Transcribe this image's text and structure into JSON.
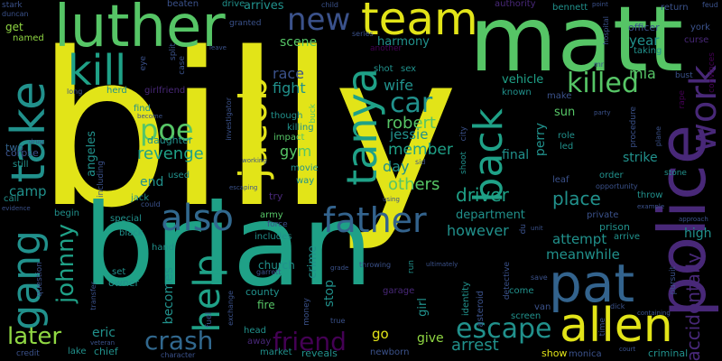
{
  "colors": {
    "background": "#000000",
    "yellow": "#e2e418",
    "green": "#56c566",
    "lightgreen": "#90d743",
    "teal": "#1fa187",
    "tealdark": "#21918c",
    "blue": "#33638d",
    "bluelight": "#3b528b",
    "purple": "#482878",
    "purpledark": "#440154",
    "navy": "#31688e"
  },
  "words": {
    "billy": "billy",
    "brian": "brian",
    "matt": "matt",
    "luther": "luther",
    "police": "police",
    "team": "team",
    "kill": "kill",
    "take": "take",
    "jacob": "jacob",
    "tanya": "tanya",
    "pat": "pat",
    "allen": "allen",
    "also": "also",
    "father": "father",
    "gang": "gang",
    "back": "back",
    "work": "work",
    "killed": "killed",
    "new": "new",
    "poe": "poe",
    "help": "help",
    "car": "car",
    "escape": "escape",
    "crash": "crash",
    "friend": "friend",
    "later": "later",
    "johnny": "johnny",
    "robert": "robert",
    "revenge": "revenge",
    "accidentally": "accidentally",
    "driver": "driver",
    "meanwhile": "meanwhile",
    "attempt": "attempt",
    "place": "place",
    "however": "however",
    "department": "department",
    "others": "others",
    "member": "member",
    "jessie": "jessie",
    "day": "day",
    "gym": "gym",
    "wife": "wife",
    "race": "race",
    "fight": "fight",
    "scene": "scene",
    "harmony": "harmony",
    "vehicle": "vehicle",
    "year": "year",
    "mia": "mia",
    "strike": "strike",
    "high": "high",
    "arrest": "arrest",
    "give": "give",
    "go": "go",
    "eric": "eric",
    "camp": "camp",
    "angeles": "angeles",
    "end": "end",
    "daughter": "daughter",
    "becomes": "becomes",
    "sun": "sun",
    "perry": "perry",
    "stop": "stop",
    "crime": "crime",
    "girl": "girl",
    "county": "county",
    "fire": "fire",
    "church": "church",
    "final": "final",
    "arrives": "arrives",
    "get": "get",
    "two": "two",
    "stark": "stark",
    "duncan": "duncan",
    "named": "named",
    "beaten": "beaten",
    "drive": "drive",
    "granted": "granted",
    "series": "series",
    "another": "another",
    "authority": "authority",
    "bennett": "bennett",
    "officer": "officer",
    "return": "return",
    "york": "york",
    "curse": "curse",
    "feud": "feud",
    "hospital": "hospital",
    "mr": "mr",
    "taking": "taking",
    "bust": "bust",
    "convinces": "convinces",
    "child": "child",
    "known": "known",
    "make": "make",
    "led": "led",
    "role": "role",
    "procedure": "procedure",
    "rape": "rape",
    "leaf": "leaf",
    "order": "order",
    "opportunity": "opportunity",
    "prison": "prison",
    "stone": "stone",
    "arrive": "arrive",
    "throw": "throw",
    "private": "private",
    "example": "example",
    "approach": "approach",
    "come": "come",
    "van": "van",
    "screen": "screen",
    "detective": "detective",
    "asteroid": "asteroid",
    "identity": "identity",
    "shoot": "shoot",
    "city": "city",
    "show": "show",
    "monica": "monica",
    "criminal": "criminal",
    "time": "time",
    "court": "court",
    "reveals": "reveals",
    "newborn": "newborn",
    "market": "market",
    "head": "head",
    "away": "away",
    "lake": "lake",
    "chief": "chief",
    "credit": "credit",
    "character": "character",
    "veteran": "veteran",
    "money": "money",
    "true": "true",
    "fuel": "fuel",
    "exchange": "exchange",
    "owner": "owner",
    "set": "set",
    "question": "question",
    "transfer": "transfer",
    "hand": "hand",
    "black": "black",
    "special": "special",
    "begin": "begin",
    "evidence": "evidence",
    "call": "call",
    "still": "still",
    "corpse": "corpse",
    "drug": "drug",
    "long": "long",
    "herd": "herd",
    "girlfriend": "girlfriend",
    "eye": "eye",
    "find": "find",
    "become": "become",
    "including": "including",
    "jack": "jack",
    "could": "could",
    "used": "used",
    "escaping": "escaping",
    "working": "working",
    "army": "army",
    "force": "force",
    "includes": "includes",
    "movie": "movie",
    "way": "way",
    "try": "try",
    "impact": "impact",
    "killing": "killing",
    "though": "though",
    "buck": "buck",
    "investigator": "investigator",
    "split": "split",
    "case": "case",
    "leave": "leave",
    "shot": "shot",
    "sex": "sex",
    "sid": "sid",
    "garage": "garage",
    "grade": "grade",
    "throwing": "throwing",
    "run": "run",
    "ultimately": "ultimately",
    "unit": "unit",
    "pursuit": "pursuit",
    "dick": "dick",
    "containing": "containing",
    "save": "save",
    "party": "party",
    "plane": "plane",
    "garrett": "garrett",
    "using": "using",
    "point": "point",
    "du": "du"
  }
}
